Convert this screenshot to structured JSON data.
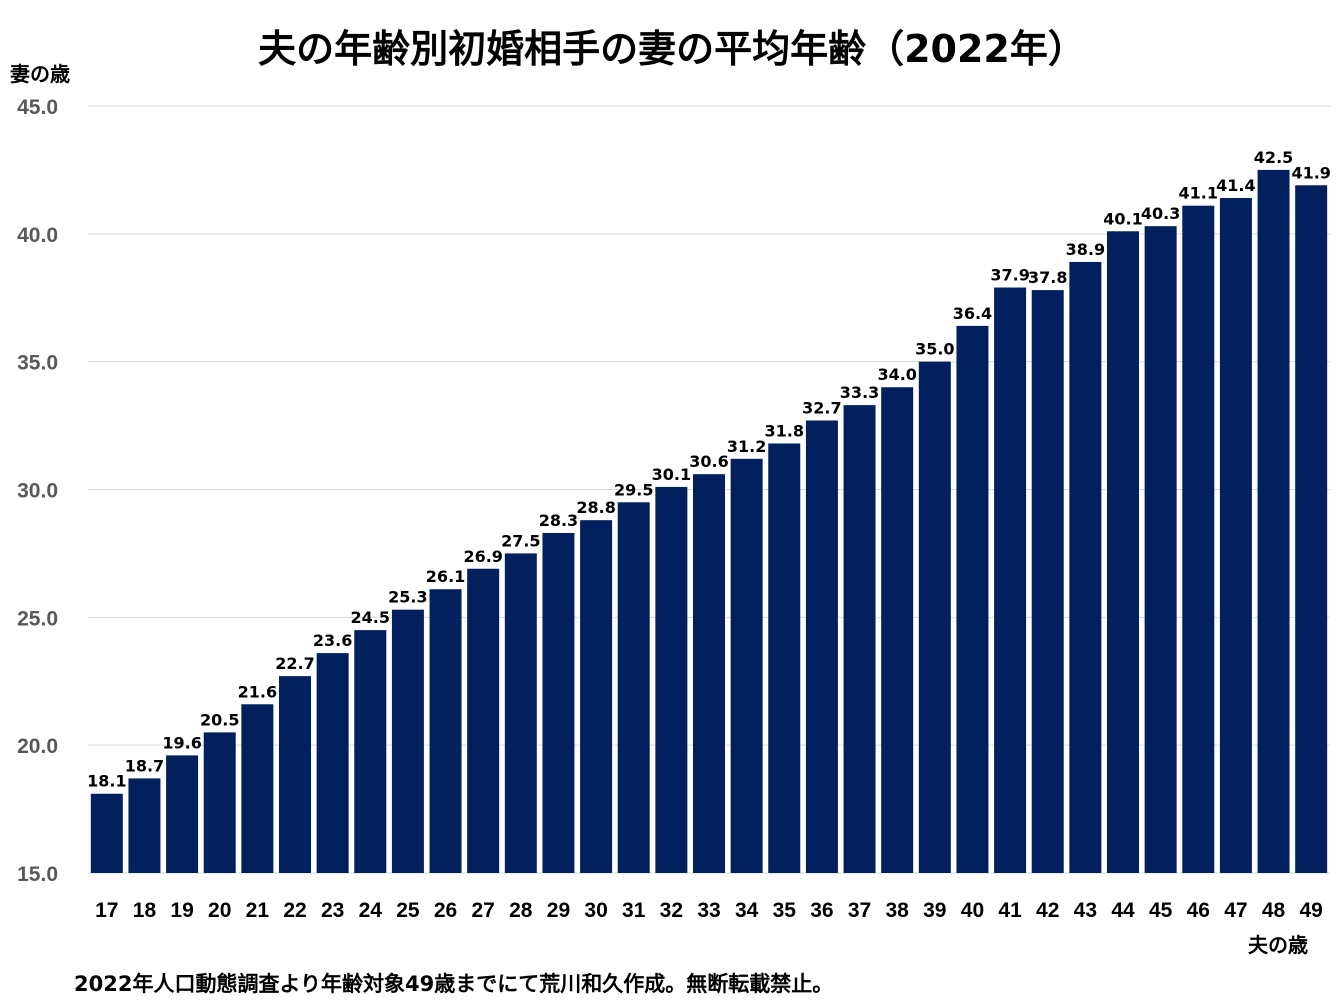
{
  "chart_data": {
    "type": "bar",
    "title": "夫の年齢別初婚相手の妻の平均年齢（2022年）",
    "ylabel": "妻の歳",
    "xlabel": "夫の歳",
    "ylim": [
      15.0,
      45.0
    ],
    "yticks": [
      "15.0",
      "20.0",
      "25.0",
      "30.0",
      "35.0",
      "40.0",
      "45.0"
    ],
    "grid": true,
    "categories": [
      "17",
      "18",
      "19",
      "20",
      "21",
      "22",
      "23",
      "24",
      "25",
      "26",
      "27",
      "28",
      "29",
      "30",
      "31",
      "32",
      "33",
      "34",
      "35",
      "36",
      "37",
      "38",
      "39",
      "40",
      "41",
      "42",
      "43",
      "44",
      "45",
      "46",
      "47",
      "48",
      "49"
    ],
    "values": [
      18.1,
      18.7,
      19.6,
      20.5,
      21.6,
      22.7,
      23.6,
      24.5,
      25.3,
      26.1,
      26.9,
      27.5,
      28.3,
      28.8,
      29.5,
      30.1,
      30.6,
      31.2,
      31.8,
      32.7,
      33.3,
      34.0,
      35.0,
      36.4,
      37.9,
      37.8,
      38.9,
      40.1,
      40.3,
      41.1,
      41.4,
      42.5,
      41.9
    ],
    "bar_color": "#03205E",
    "tick_color": "#595959"
  },
  "footnote": "2022年人口動態調査より年齢対象49歳までにて荒川和久作成。無断転載禁止。"
}
